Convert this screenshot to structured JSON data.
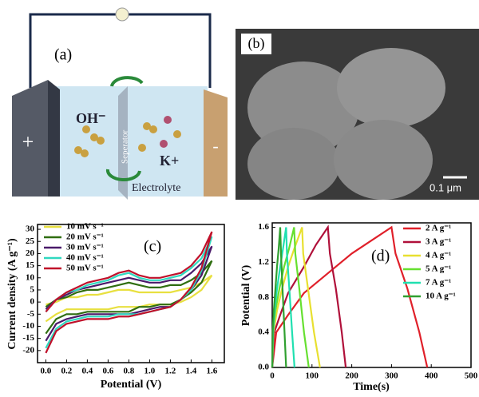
{
  "schematic": {
    "label": "(a)",
    "plus": "+",
    "minus": "-",
    "anion": "OH⁻",
    "cation": "K+",
    "separator": "Seperator",
    "electrolyte": "Electrolyte"
  },
  "sem": {
    "label": "(b)",
    "scale_bar": "0.1 μm"
  },
  "chart_data": [
    {
      "type": "line",
      "annotation": "(c)",
      "x_label": "Potential (V)",
      "y_label": "Current density (A g⁻¹)",
      "x": [
        0,
        0.1,
        0.2,
        0.3,
        0.4,
        0.5,
        0.6,
        0.7,
        0.8,
        0.9,
        1.0,
        1.1,
        1.2,
        1.3,
        1.4,
        1.5,
        1.6,
        1.5,
        1.4,
        1.3,
        1.2,
        1.1,
        1.0,
        0.9,
        0.8,
        0.7,
        0.6,
        0.5,
        0.4,
        0.3,
        0.2,
        0.1,
        0
      ],
      "series": [
        {
          "name": "10 mV s⁻¹",
          "color": "#e8e040",
          "values": [
            -1,
            0,
            2,
            2,
            3,
            3,
            4,
            5,
            5,
            4,
            4,
            4,
            4,
            5,
            6,
            8,
            11,
            5,
            2,
            0,
            -1,
            -1,
            -1,
            -2,
            -2,
            -2,
            -3,
            -3,
            -3,
            -3,
            -3,
            -5,
            -8
          ]
        },
        {
          "name": "20 mV s⁻¹",
          "color": "#2f6e10",
          "values": [
            -2,
            1,
            2,
            4,
            5,
            5,
            6,
            7,
            8,
            7,
            6,
            6,
            7,
            7,
            9,
            12,
            17,
            8,
            4,
            1,
            -1,
            -1,
            -2,
            -2,
            -4,
            -4,
            -4,
            -4,
            -4,
            -5,
            -5,
            -7,
            -13
          ]
        },
        {
          "name": "30 mV s⁻¹",
          "color": "#4a1a6a",
          "values": [
            -3,
            1,
            3,
            5,
            6,
            7,
            8,
            9,
            10,
            9,
            8,
            8,
            9,
            9,
            12,
            16,
            23,
            11,
            5,
            1,
            -2,
            -2,
            -3,
            -4,
            -5,
            -5,
            -5,
            -5,
            -5,
            -6,
            -7,
            -9,
            -16
          ]
        },
        {
          "name": "40 mV s⁻¹",
          "color": "#30d8c0",
          "values": [
            -4,
            1,
            4,
            5,
            7,
            8,
            9,
            11,
            12,
            10,
            9,
            9,
            10,
            11,
            14,
            18,
            27,
            13,
            5,
            1,
            -2,
            -3,
            -4,
            -5,
            -5,
            -5,
            -6,
            -6,
            -6,
            -7,
            -8,
            -11,
            -19
          ]
        },
        {
          "name": "50 mV s⁻¹",
          "color": "#c0102a",
          "values": [
            -4,
            1,
            4,
            6,
            8,
            9,
            10,
            12,
            13,
            11,
            10,
            10,
            11,
            12,
            15,
            20,
            29,
            14,
            6,
            1,
            -2,
            -3,
            -4,
            -5,
            -6,
            -6,
            -7,
            -7,
            -7,
            -8,
            -9,
            -12,
            -21
          ]
        }
      ],
      "xlim": [
        -0.08,
        1.72
      ],
      "xticks": [
        {
          "value": 0,
          "label": "0.0"
        },
        0.2,
        0.4,
        0.6,
        0.8,
        {
          "value": 1,
          "label": "1.0"
        },
        1.2,
        1.4,
        1.6
      ],
      "ylim": [
        -25,
        32
      ],
      "yticks": [
        -20,
        -15,
        -10,
        -5,
        0,
        5,
        10,
        15,
        20,
        25,
        30
      ]
    },
    {
      "type": "line",
      "annotation": "(d)",
      "x_label": "Time(s)",
      "y_label": "Potential (V)",
      "series": [
        {
          "name": "2 A g⁻¹",
          "color": "#e0202a",
          "x": [
            0,
            10,
            40,
            80,
            120,
            160,
            200,
            250,
            300,
            310,
            340,
            370,
            390
          ],
          "values": [
            0,
            0.4,
            0.6,
            0.85,
            1.0,
            1.15,
            1.3,
            1.45,
            1.6,
            1.3,
            0.9,
            0.4,
            0
          ]
        },
        {
          "name": "3 A g⁻¹",
          "color": "#b0103a",
          "x": [
            0,
            5,
            20,
            40,
            60,
            80,
            110,
            140,
            145,
            160,
            175,
            185
          ],
          "values": [
            0,
            0.4,
            0.6,
            0.85,
            1.0,
            1.15,
            1.4,
            1.6,
            1.3,
            0.9,
            0.4,
            0
          ]
        },
        {
          "name": "4 A g⁻¹",
          "color": "#e8e030",
          "x": [
            0,
            3,
            12,
            25,
            40,
            55,
            75,
            78,
            90,
            105,
            120
          ],
          "values": [
            0,
            0.4,
            0.65,
            0.9,
            1.15,
            1.35,
            1.6,
            1.3,
            0.9,
            0.4,
            0
          ]
        },
        {
          "name": "5 A g⁻¹",
          "color": "#66e030",
          "x": [
            0,
            2,
            8,
            18,
            30,
            42,
            55,
            58,
            68,
            80,
            92
          ],
          "values": [
            0,
            0.4,
            0.65,
            0.9,
            1.15,
            1.35,
            1.6,
            1.3,
            0.9,
            0.4,
            0
          ]
        },
        {
          "name": "7 A g⁻¹",
          "color": "#20e0b0",
          "x": [
            0,
            2,
            6,
            12,
            20,
            27,
            35,
            37,
            43,
            50,
            56
          ],
          "values": [
            0,
            0.4,
            0.65,
            0.9,
            1.15,
            1.35,
            1.6,
            1.3,
            0.9,
            0.4,
            0
          ]
        },
        {
          "name": "10 A g⁻¹",
          "color": "#30a030",
          "x": [
            0,
            1,
            4,
            8,
            12,
            16,
            20,
            22,
            26,
            31,
            35
          ],
          "values": [
            0,
            0.4,
            0.65,
            0.9,
            1.15,
            1.35,
            1.6,
            1.3,
            0.9,
            0.4,
            0
          ]
        }
      ],
      "xlim": [
        0,
        500
      ],
      "xticks": [
        0,
        100,
        200,
        300,
        400,
        500
      ],
      "ylim": [
        0,
        1.65
      ],
      "yticks": [
        {
          "value": 0,
          "label": "0.0"
        },
        0.4,
        0.8,
        1.2,
        1.6
      ]
    }
  ]
}
